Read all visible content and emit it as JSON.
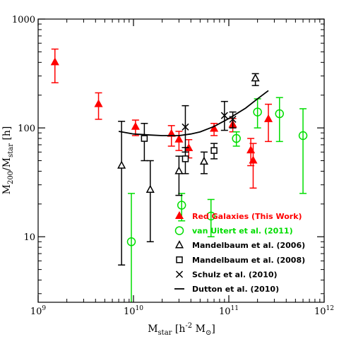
{
  "chart_data": {
    "type": "scatter",
    "xscale": "log",
    "yscale": "log",
    "xlim": [
      1000000000.0,
      1000000000000.0
    ],
    "ylim": [
      2.5,
      1000
    ],
    "grid": false,
    "legend_position": "bottom-right",
    "xlabel": {
      "main": "M",
      "sub": "star",
      "rest": " [h",
      "sup": "-2",
      "unit": " M",
      "unit_sub": "⊙",
      "close": "]"
    },
    "ylabel": {
      "main": "M",
      "sub1": "200",
      "slash": "/M",
      "sub2": "star",
      "rest": " [h]"
    },
    "x_ticks": [
      {
        "value": 1000000000.0,
        "base": "10",
        "exp": "9"
      },
      {
        "value": 10000000000.0,
        "base": "10",
        "exp": "10"
      },
      {
        "value": 100000000000.0,
        "base": "10",
        "exp": "11"
      },
      {
        "value": 1000000000000.0,
        "base": "10",
        "exp": "12"
      }
    ],
    "y_ticks": [
      {
        "value": 10,
        "label": "10"
      },
      {
        "value": 100,
        "label": "100"
      },
      {
        "value": 1000,
        "label": "1000"
      }
    ],
    "series": [
      {
        "name": "Red Galaxies (This Work)",
        "marker": "filled-triangle",
        "color": "#ff0000",
        "points": [
          {
            "x": 1500000000.0,
            "y": 400,
            "ylo": 260,
            "yhi": 530
          },
          {
            "x": 4300000000.0,
            "y": 165,
            "ylo": 120,
            "yhi": 210
          },
          {
            "x": 10500000000.0,
            "y": 102,
            "ylo": 85,
            "yhi": 118
          },
          {
            "x": 25000000000.0,
            "y": 88,
            "ylo": 68,
            "yhi": 105
          },
          {
            "x": 30000000000.0,
            "y": 78,
            "ylo": 62,
            "yhi": 93
          },
          {
            "x": 38000000000.0,
            "y": 65,
            "ylo": 53,
            "yhi": 78
          },
          {
            "x": 70000000000.0,
            "y": 98,
            "ylo": 85,
            "yhi": 110
          },
          {
            "x": 110000000000.0,
            "y": 107,
            "ylo": 92,
            "yhi": 122
          },
          {
            "x": 170000000000.0,
            "y": 62,
            "ylo": 45,
            "yhi": 80
          },
          {
            "x": 180000000000.0,
            "y": 50,
            "ylo": 28,
            "yhi": 72
          },
          {
            "x": 260000000000.0,
            "y": 120,
            "ylo": 75,
            "yhi": 165
          }
        ]
      },
      {
        "name": "van Uitert et al. (2011)",
        "marker": "open-circle",
        "color": "#00dd00",
        "points": [
          {
            "x": 9500000000.0,
            "y": 9,
            "ylo": 2.5,
            "yhi": 25
          },
          {
            "x": 32000000000.0,
            "y": 19.5,
            "ylo": 14,
            "yhi": 25
          },
          {
            "x": 65000000000.0,
            "y": 15.5,
            "ylo": 10,
            "yhi": 22
          },
          {
            "x": 120000000000.0,
            "y": 80,
            "ylo": 68,
            "yhi": 92
          },
          {
            "x": 200000000000.0,
            "y": 140,
            "ylo": 100,
            "yhi": 185
          },
          {
            "x": 340000000000.0,
            "y": 135,
            "ylo": 75,
            "yhi": 190
          },
          {
            "x": 600000000000.0,
            "y": 85,
            "ylo": 25,
            "yhi": 150
          }
        ]
      },
      {
        "name": "Mandelbaum et al. (2006)",
        "marker": "open-triangle",
        "color": "#000000",
        "points": [
          {
            "x": 7500000000.0,
            "y": 45,
            "ylo": 5.5,
            "yhi": 115
          },
          {
            "x": 15000000000.0,
            "y": 27,
            "ylo": 9,
            "yhi": 50
          },
          {
            "x": 30000000000.0,
            "y": 40,
            "ylo": 24,
            "yhi": 55
          },
          {
            "x": 55000000000.0,
            "y": 49,
            "ylo": 38,
            "yhi": 60
          },
          {
            "x": 190000000000.0,
            "y": 285,
            "ylo": 245,
            "yhi": 315
          }
        ]
      },
      {
        "name": "Mandelbaum et al. (2008)",
        "marker": "open-square",
        "color": "#000000",
        "points": [
          {
            "x": 13000000000.0,
            "y": 80,
            "ylo": 50,
            "yhi": 110
          },
          {
            "x": 35000000000.0,
            "y": 52,
            "ylo": 38,
            "yhi": 66
          },
          {
            "x": 70000000000.0,
            "y": 62,
            "ylo": 52,
            "yhi": 72
          }
        ]
      },
      {
        "name": "Schulz et al. (2010)",
        "marker": "x",
        "color": "#000000",
        "points": [
          {
            "x": 35000000000.0,
            "y": 102,
            "ylo": 60,
            "yhi": 160
          },
          {
            "x": 90000000000.0,
            "y": 130,
            "ylo": 95,
            "yhi": 175
          },
          {
            "x": 110000000000.0,
            "y": 120,
            "ylo": 100,
            "yhi": 140
          }
        ]
      },
      {
        "name": "Dutton et al. (2010)",
        "marker": "line",
        "color": "#000000",
        "points": [
          {
            "x": 7000000000.0,
            "y": 93
          },
          {
            "x": 10000000000.0,
            "y": 88
          },
          {
            "x": 15000000000.0,
            "y": 86
          },
          {
            "x": 20000000000.0,
            "y": 85
          },
          {
            "x": 30000000000.0,
            "y": 85
          },
          {
            "x": 40000000000.0,
            "y": 88
          },
          {
            "x": 50000000000.0,
            "y": 92
          },
          {
            "x": 70000000000.0,
            "y": 103
          },
          {
            "x": 100000000000.0,
            "y": 122
          },
          {
            "x": 150000000000.0,
            "y": 152
          },
          {
            "x": 200000000000.0,
            "y": 185
          },
          {
            "x": 260000000000.0,
            "y": 220
          }
        ]
      }
    ]
  }
}
